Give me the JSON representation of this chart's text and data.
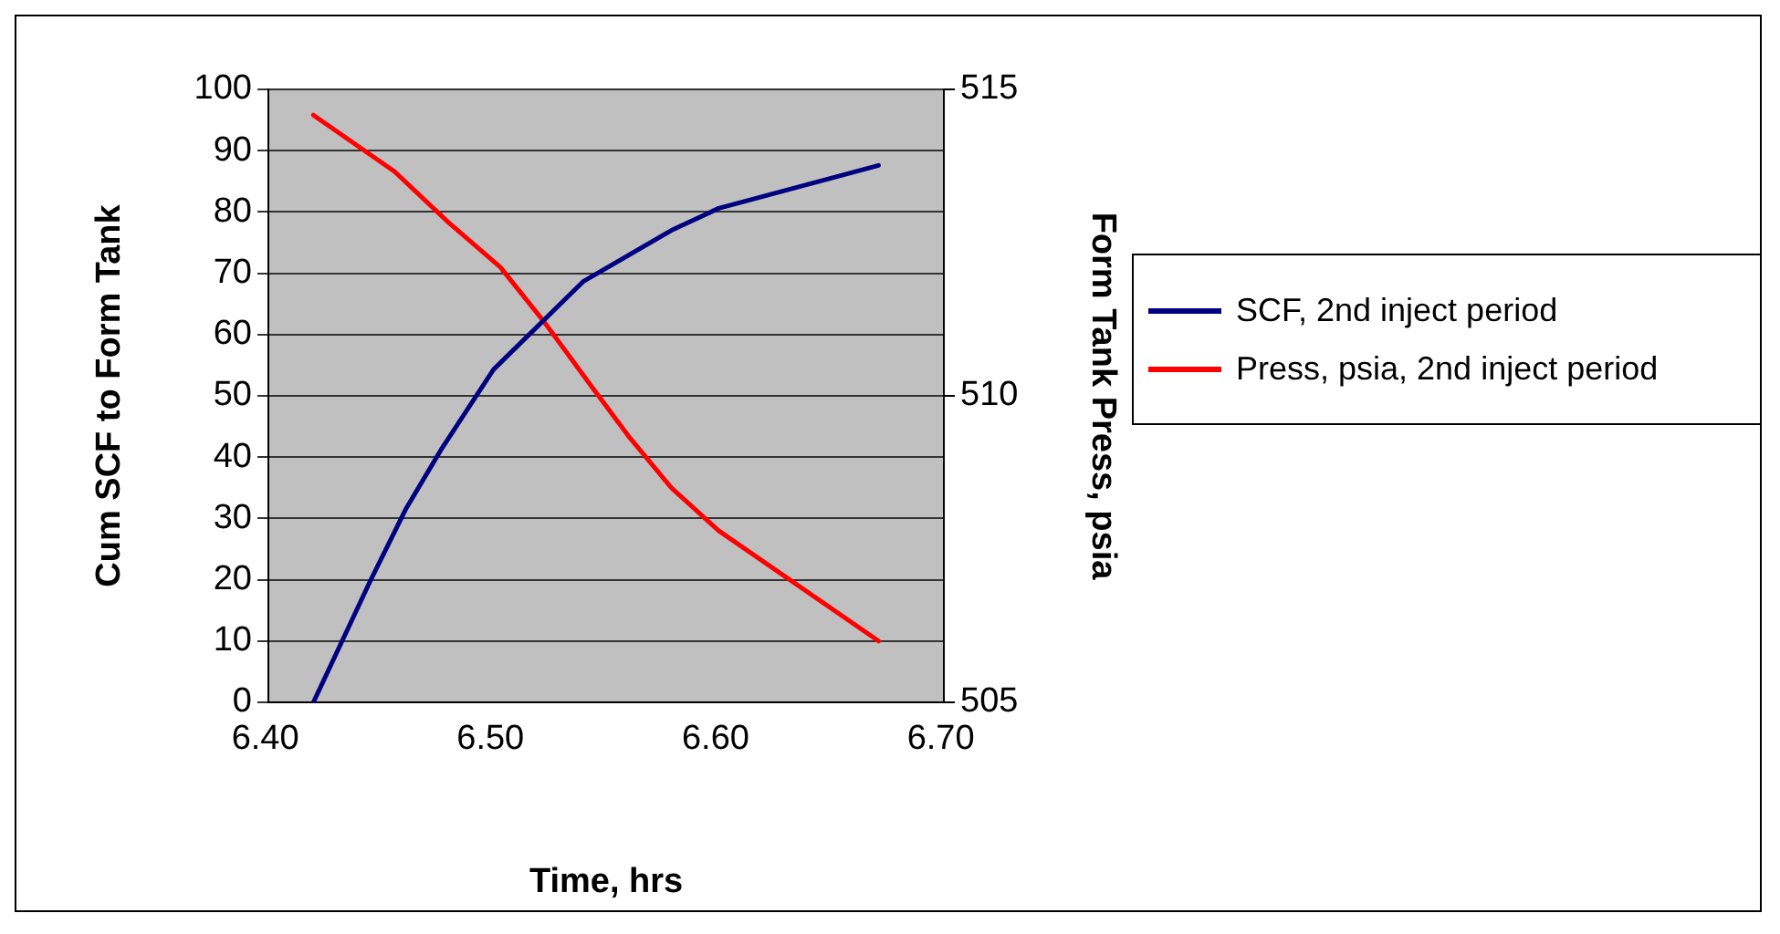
{
  "chart_data": {
    "type": "line",
    "xlabel": "Time, hrs",
    "ylabel": "Cum SCF to Form Tank",
    "y2label": "Form Tank Press, psia",
    "xlim": [
      6.4,
      6.7
    ],
    "xticks": [
      {
        "value": 6.4,
        "label": "6.40"
      },
      {
        "value": 6.5,
        "label": "6.50"
      },
      {
        "value": 6.6,
        "label": "6.60"
      },
      {
        "value": 6.7,
        "label": "6.70"
      }
    ],
    "ylim": [
      0,
      100
    ],
    "yticks": [
      0,
      10,
      20,
      30,
      40,
      50,
      60,
      70,
      80,
      90,
      100
    ],
    "y2lim": [
      505,
      515
    ],
    "y2ticks": [
      505,
      510,
      515
    ],
    "grid": "y",
    "legend": "right",
    "marker": "none",
    "line_style": "solid",
    "series": [
      {
        "name": "SCF, 2nd inject period",
        "color": "#000080",
        "x": [
          6.42,
          6.445,
          6.461,
          6.477,
          6.5,
          6.54,
          6.579,
          6.6,
          6.671
        ],
        "values": [
          0,
          19.6,
          31.5,
          41.4,
          54.3,
          68.7,
          77,
          80.6,
          87.6
        ]
      },
      {
        "name": "Press, psia, 2nd inject period",
        "color": "#ff0000",
        "axis": "y2",
        "x": [
          6.42,
          6.456,
          6.48,
          6.503,
          6.522,
          6.544,
          6.56,
          6.579,
          6.6,
          6.671
        ],
        "values": [
          514.58,
          513.66,
          512.83,
          512.1,
          511.23,
          510.13,
          509.34,
          508.5,
          507.8,
          506.0
        ]
      }
    ]
  }
}
